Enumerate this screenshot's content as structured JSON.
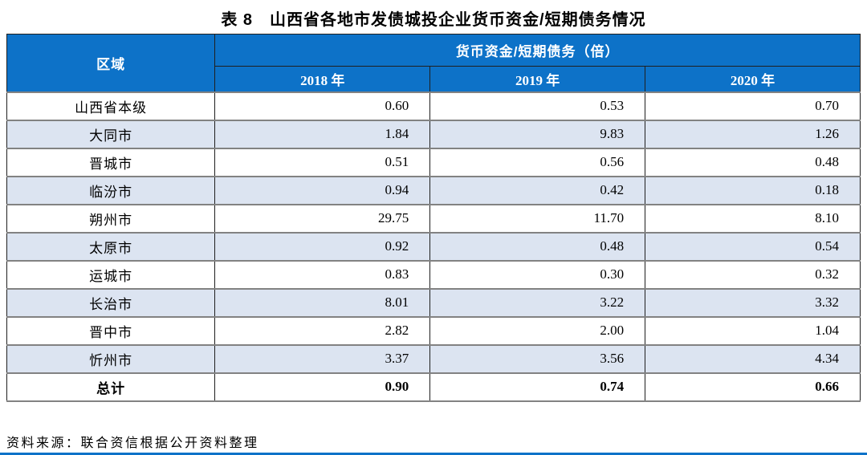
{
  "title": "表 8　山西省各地市发债城投企业货币资金/短期债务情况",
  "table": {
    "region_header": "区域",
    "group_header": "货币资金/短期债务（倍）",
    "year_headers": [
      "2018 年",
      "2019 年",
      "2020 年"
    ],
    "rows": [
      {
        "region": "山西省本级",
        "values": [
          "0.60",
          "0.53",
          "0.70"
        ],
        "bold": false
      },
      {
        "region": "大同市",
        "values": [
          "1.84",
          "9.83",
          "1.26"
        ],
        "bold": false
      },
      {
        "region": "晋城市",
        "values": [
          "0.51",
          "0.56",
          "0.48"
        ],
        "bold": false
      },
      {
        "region": "临汾市",
        "values": [
          "0.94",
          "0.42",
          "0.18"
        ],
        "bold": false
      },
      {
        "region": "朔州市",
        "values": [
          "29.75",
          "11.70",
          "8.10"
        ],
        "bold": false
      },
      {
        "region": "太原市",
        "values": [
          "0.92",
          "0.48",
          "0.54"
        ],
        "bold": false
      },
      {
        "region": "运城市",
        "values": [
          "0.83",
          "0.30",
          "0.32"
        ],
        "bold": false
      },
      {
        "region": "长治市",
        "values": [
          "8.01",
          "3.22",
          "3.32"
        ],
        "bold": false
      },
      {
        "region": "晋中市",
        "values": [
          "2.82",
          "2.00",
          "1.04"
        ],
        "bold": false
      },
      {
        "region": "忻州市",
        "values": [
          "3.37",
          "3.56",
          "4.34"
        ],
        "bold": false
      },
      {
        "region": "总计",
        "values": [
          "0.90",
          "0.74",
          "0.66"
        ],
        "bold": true
      }
    ]
  },
  "footer": {
    "source": "资料来源：联合资信根据公开资料整理"
  },
  "colors": {
    "header_bg": "#0d72c8",
    "alt_row_bg": "#dce4f1",
    "border_dark": "#1f1f1f",
    "border_gray": "#828282",
    "accent_rule": "#0d72c8"
  }
}
